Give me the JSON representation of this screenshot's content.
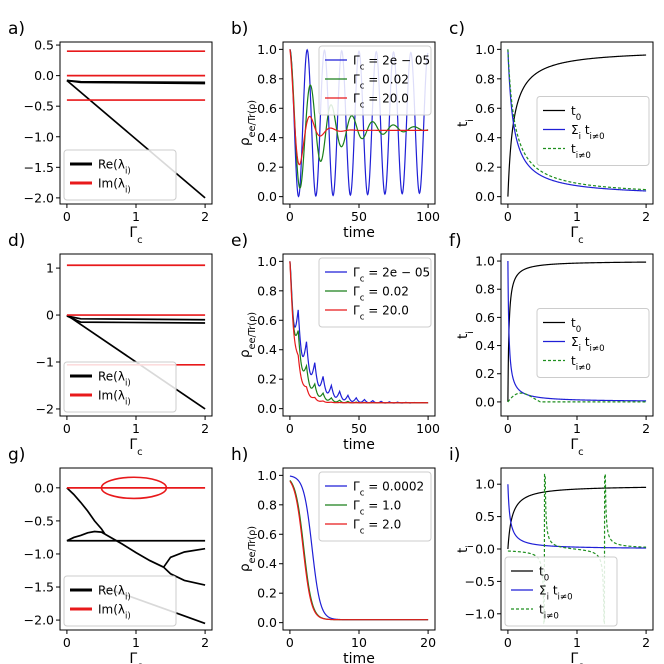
{
  "colors": {
    "black": "#000000",
    "red": "#e8191b",
    "blue": "#1f1fd6",
    "green": "#1a7f1a",
    "dashgreen": "#1f8f1f"
  },
  "chart_data": [
    {
      "panel_label": "a)",
      "type": "line",
      "xlabel": "Γ_c",
      "ylabel": "",
      "xlim": [
        -0.1,
        2.1
      ],
      "ylim": [
        -2.1,
        0.55
      ],
      "xticks": [
        0,
        1,
        2
      ],
      "yticks": [
        0.5,
        0.0,
        -0.5,
        -1.0,
        -1.5,
        -2.0
      ],
      "legend": {
        "placement": "lower-left",
        "entries": [
          "Re(λ_i)",
          "Im(λ_i)"
        ]
      },
      "series": [
        {
          "name": "Re(λ_i)",
          "color": "black",
          "x": [
            0,
            2
          ],
          "y": [
            -0.08,
            -2.0
          ]
        },
        {
          "color": "black",
          "x": [
            0,
            0.2,
            2
          ],
          "y": [
            -0.08,
            -0.11,
            -0.13
          ]
        },
        {
          "color": "black",
          "x": [
            0,
            0.2,
            2
          ],
          "y": [
            -0.08,
            -0.1,
            -0.11
          ]
        },
        {
          "name": "Im(λ_i)",
          "color": "red",
          "x": [
            0,
            2
          ],
          "y": [
            0.4,
            0.4
          ]
        },
        {
          "color": "red",
          "x": [
            0,
            2
          ],
          "y": [
            0.0,
            0.0
          ]
        },
        {
          "color": "red",
          "x": [
            0,
            2
          ],
          "y": [
            -0.4,
            -0.4
          ]
        }
      ]
    },
    {
      "panel_label": "b)",
      "type": "line",
      "xlabel": "time",
      "ylabel": "ρ_ee/Tr(ρ)",
      "xlim": [
        -5,
        105
      ],
      "ylim": [
        -0.05,
        1.05
      ],
      "xticks": [
        0,
        50,
        100
      ],
      "yticks": [
        0.0,
        0.2,
        0.4,
        0.6,
        0.8,
        1.0
      ],
      "legend": {
        "placement": "top-right",
        "entries": [
          "Γ_c = 2e − 05",
          "Γ_c = 0.02",
          "Γ_c = 20.0"
        ]
      },
      "series": [
        {
          "name": "Γ_c = 2e − 05",
          "color": "blue",
          "model": "damped-oscillation",
          "start": 1.0,
          "steady": 0.5,
          "period": 12.5,
          "decay": 0.0005,
          "tmax": 100
        },
        {
          "name": "Γ_c = 0.02",
          "color": "green",
          "model": "damped-oscillation",
          "start": 1.0,
          "steady": 0.46,
          "period": 15,
          "decay": 0.04,
          "tmax": 100
        },
        {
          "name": "Γ_c = 20.0",
          "color": "red",
          "model": "damped-oscillation",
          "start": 1.0,
          "steady": 0.45,
          "period": 15,
          "decay": 0.12,
          "tmax": 100
        }
      ]
    },
    {
      "panel_label": "c)",
      "type": "line",
      "xlabel": "Γ_c",
      "ylabel": "t_i",
      "xlim": [
        -0.1,
        2.1
      ],
      "ylim": [
        -0.05,
        1.05
      ],
      "xticks": [
        0,
        1,
        2
      ],
      "yticks": [
        0.0,
        0.2,
        0.4,
        0.6,
        0.8,
        1.0
      ],
      "legend": {
        "placement": "center-right",
        "entries": [
          "t_0",
          "Σ_i t_{i≠0}",
          "t_{i≠0}"
        ]
      },
      "series": [
        {
          "name": "t_0",
          "color": "black",
          "model": "saturation",
          "a": 0.0,
          "b": 1.0,
          "k": 0.08
        },
        {
          "name": "Σ_i t_{i≠0}",
          "color": "blue",
          "model": "decay",
          "a": 1.0,
          "k": 0.08
        },
        {
          "name": "t_{i≠0}",
          "color": "dashgreen",
          "dashed": true,
          "model": "decay",
          "a": 1.0,
          "k": 0.1
        }
      ]
    },
    {
      "panel_label": "d)",
      "type": "line",
      "xlabel": "Γ_c",
      "ylabel": "",
      "xlim": [
        -0.1,
        2.1
      ],
      "ylim": [
        -2.15,
        1.3
      ],
      "xticks": [
        0,
        1,
        2
      ],
      "yticks": [
        1,
        0,
        -1,
        -2
      ],
      "legend": {
        "placement": "lower-left",
        "entries": [
          "Re(λ_i)",
          "Im(λ_i)"
        ]
      },
      "series": [
        {
          "name": "Re(λ_i)",
          "color": "black",
          "x": [
            0,
            2
          ],
          "y": [
            0.0,
            -2.0
          ]
        },
        {
          "color": "black",
          "x": [
            0,
            0.2,
            2
          ],
          "y": [
            -0.02,
            -0.15,
            -0.17
          ]
        },
        {
          "color": "black",
          "x": [
            0,
            0.2,
            2
          ],
          "y": [
            -0.02,
            -0.08,
            -0.1
          ]
        },
        {
          "name": "Im(λ_i)",
          "color": "red",
          "x": [
            0,
            2
          ],
          "y": [
            1.06,
            1.06
          ]
        },
        {
          "color": "red",
          "x": [
            0,
            2
          ],
          "y": [
            0.0,
            0.0
          ]
        },
        {
          "color": "red",
          "x": [
            0,
            2
          ],
          "y": [
            -1.06,
            -1.06
          ]
        }
      ]
    },
    {
      "panel_label": "e)",
      "type": "line",
      "xlabel": "time",
      "ylabel": "ρ_ee/Tr(ρ)",
      "xlim": [
        -5,
        105
      ],
      "ylim": [
        -0.05,
        1.05
      ],
      "xticks": [
        0,
        50,
        100
      ],
      "yticks": [
        0.0,
        0.2,
        0.4,
        0.6,
        0.8,
        1.0
      ],
      "legend": {
        "placement": "top-right",
        "entries": [
          "Γ_c = 2e − 05",
          "Γ_c = 0.02",
          "Γ_c = 20.0"
        ]
      },
      "series": [
        {
          "name": "Γ_c = 2e − 05",
          "color": "blue",
          "model": "decaying-oscillation",
          "steady": 0.04,
          "period": 6,
          "decay": 0.05,
          "amp": 0.3,
          "tmax": 100
        },
        {
          "name": "Γ_c = 0.02",
          "color": "green",
          "model": "decaying-oscillation",
          "steady": 0.04,
          "period": 6,
          "decay": 0.08,
          "amp": 0.25,
          "tmax": 100
        },
        {
          "name": "Γ_c = 20.0",
          "color": "red",
          "model": "decaying-oscillation",
          "steady": 0.04,
          "period": 6,
          "decay": 0.13,
          "amp": 0.15,
          "tmax": 100
        }
      ]
    },
    {
      "panel_label": "f)",
      "type": "line",
      "xlabel": "Γ_c",
      "ylabel": "t_i",
      "xlim": [
        -0.1,
        2.1
      ],
      "ylim": [
        -0.1,
        1.05
      ],
      "xticks": [
        0,
        1,
        2
      ],
      "yticks": [
        0.0,
        0.2,
        0.4,
        0.6,
        0.8,
        1.0
      ],
      "legend": {
        "placement": "center-right",
        "entries": [
          "t_0",
          "Σ_i t_{i≠0}",
          "t_{i≠0}"
        ]
      },
      "series": [
        {
          "name": "t_0",
          "color": "black",
          "model": "saturation",
          "a": 0.0,
          "b": 1.0,
          "k": 0.015
        },
        {
          "name": "Σ_i t_{i≠0}",
          "color": "blue",
          "model": "decay",
          "a": 1.0,
          "k": 0.015
        },
        {
          "name": "t_{i≠0}",
          "color": "dashgreen",
          "dashed": true,
          "model": "bump",
          "amp": 0.1,
          "k": 0.15
        }
      ]
    },
    {
      "panel_label": "g)",
      "type": "line",
      "xlabel": "Γ_c",
      "ylabel": "",
      "xlim": [
        -0.1,
        2.1
      ],
      "ylim": [
        -2.15,
        0.3
      ],
      "xticks": [
        0,
        1,
        2
      ],
      "yticks": [
        0.0,
        -0.5,
        -1.0,
        -1.5,
        -2.0
      ],
      "legend": {
        "placement": "lower-left",
        "entries": [
          "Re(λ_i)",
          "Im(λ_i)"
        ]
      },
      "series": [
        {
          "name": "Re(λ_i)",
          "color": "black",
          "x": [
            0,
            0.1,
            0.2,
            0.3,
            0.4,
            0.5,
            0.55
          ],
          "y": [
            0.0,
            -0.1,
            -0.22,
            -0.35,
            -0.5,
            -0.62,
            -0.7
          ]
        },
        {
          "color": "black",
          "x": [
            0,
            0.1,
            0.2,
            0.3,
            0.4,
            0.5,
            0.55
          ],
          "y": [
            -0.8,
            -0.75,
            -0.72,
            -0.68,
            -0.66,
            -0.67,
            -0.7
          ]
        },
        {
          "color": "black",
          "x": [
            0,
            2
          ],
          "y": [
            -0.8,
            -0.8
          ]
        },
        {
          "color": "black",
          "x": [
            1.4,
            1.5,
            1.7,
            2.0
          ],
          "y": [
            -1.2,
            -1.05,
            -0.97,
            -0.92
          ]
        },
        {
          "color": "black",
          "x": [
            1.4,
            1.5,
            1.7,
            2.0
          ],
          "y": [
            -1.2,
            -1.3,
            -1.4,
            -1.47
          ]
        },
        {
          "color": "black",
          "x": [
            0.55,
            0.8,
            1.0,
            1.2,
            1.4
          ],
          "y": [
            -0.7,
            -0.85,
            -0.98,
            -1.1,
            -1.2
          ]
        },
        {
          "color": "black",
          "x": [
            0.55,
            0.8,
            1.2,
            1.6,
            2.0
          ],
          "y": [
            -1.52,
            -1.6,
            -1.75,
            -1.9,
            -2.05
          ]
        },
        {
          "name": "Im(λ_i)",
          "color": "red",
          "x": [
            0,
            2
          ],
          "y": [
            0.0,
            0.0
          ]
        },
        {
          "color": "red",
          "ellipse": true,
          "cx": 0.97,
          "cy": 0.0,
          "rx": 0.47,
          "ry": 0.16
        }
      ]
    },
    {
      "panel_label": "h)",
      "type": "line",
      "xlabel": "time",
      "ylabel": "ρ_ee/Tr(ρ)",
      "xlim": [
        -1,
        21
      ],
      "ylim": [
        -0.05,
        1.05
      ],
      "xticks": [
        0,
        10,
        20
      ],
      "yticks": [
        0.0,
        0.2,
        0.4,
        0.6,
        0.8,
        1.0
      ],
      "legend": {
        "placement": "top-right",
        "entries": [
          "Γ_c = 0.0002",
          "Γ_c = 1.0",
          "Γ_c = 2.0"
        ]
      },
      "series": [
        {
          "name": "Γ_c = 0.0002",
          "color": "blue",
          "model": "sigmoid-drop",
          "mid": 3.2,
          "w": 0.6,
          "steady": 0.02,
          "tmax": 20
        },
        {
          "name": "Γ_c = 1.0",
          "color": "green",
          "model": "sigmoid-drop",
          "mid": 2.0,
          "w": 0.6,
          "steady": 0.02,
          "tmax": 20
        },
        {
          "name": "Γ_c = 2.0",
          "color": "red",
          "model": "sigmoid-drop",
          "mid": 1.9,
          "w": 0.6,
          "steady": 0.02,
          "tmax": 20
        }
      ]
    },
    {
      "panel_label": "i)",
      "type": "line",
      "xlabel": "Γ_c",
      "ylabel": "t_i",
      "xlim": [
        -0.1,
        2.1
      ],
      "ylim": [
        -1.25,
        1.25
      ],
      "xticks": [
        0,
        1,
        2
      ],
      "yticks": [
        1.0,
        0.5,
        0.0,
        -0.5,
        -1.0
      ],
      "legend": {
        "placement": "lower-left",
        "entries": [
          "t_0",
          "Σ_i t_{i≠0}",
          "t_{i≠0}"
        ]
      },
      "series": [
        {
          "name": "t_0",
          "color": "black",
          "model": "saturation",
          "a": 0.0,
          "b": 0.98,
          "k": 0.06
        },
        {
          "name": "Σ_i t_{i≠0}",
          "color": "blue",
          "model": "decay",
          "a": 1.0,
          "k": 0.03
        },
        {
          "name": "t_{i≠0}",
          "color": "dashgreen",
          "dashed": true,
          "model": "poles",
          "poles": [
            0.53,
            1.4
          ]
        }
      ]
    }
  ]
}
